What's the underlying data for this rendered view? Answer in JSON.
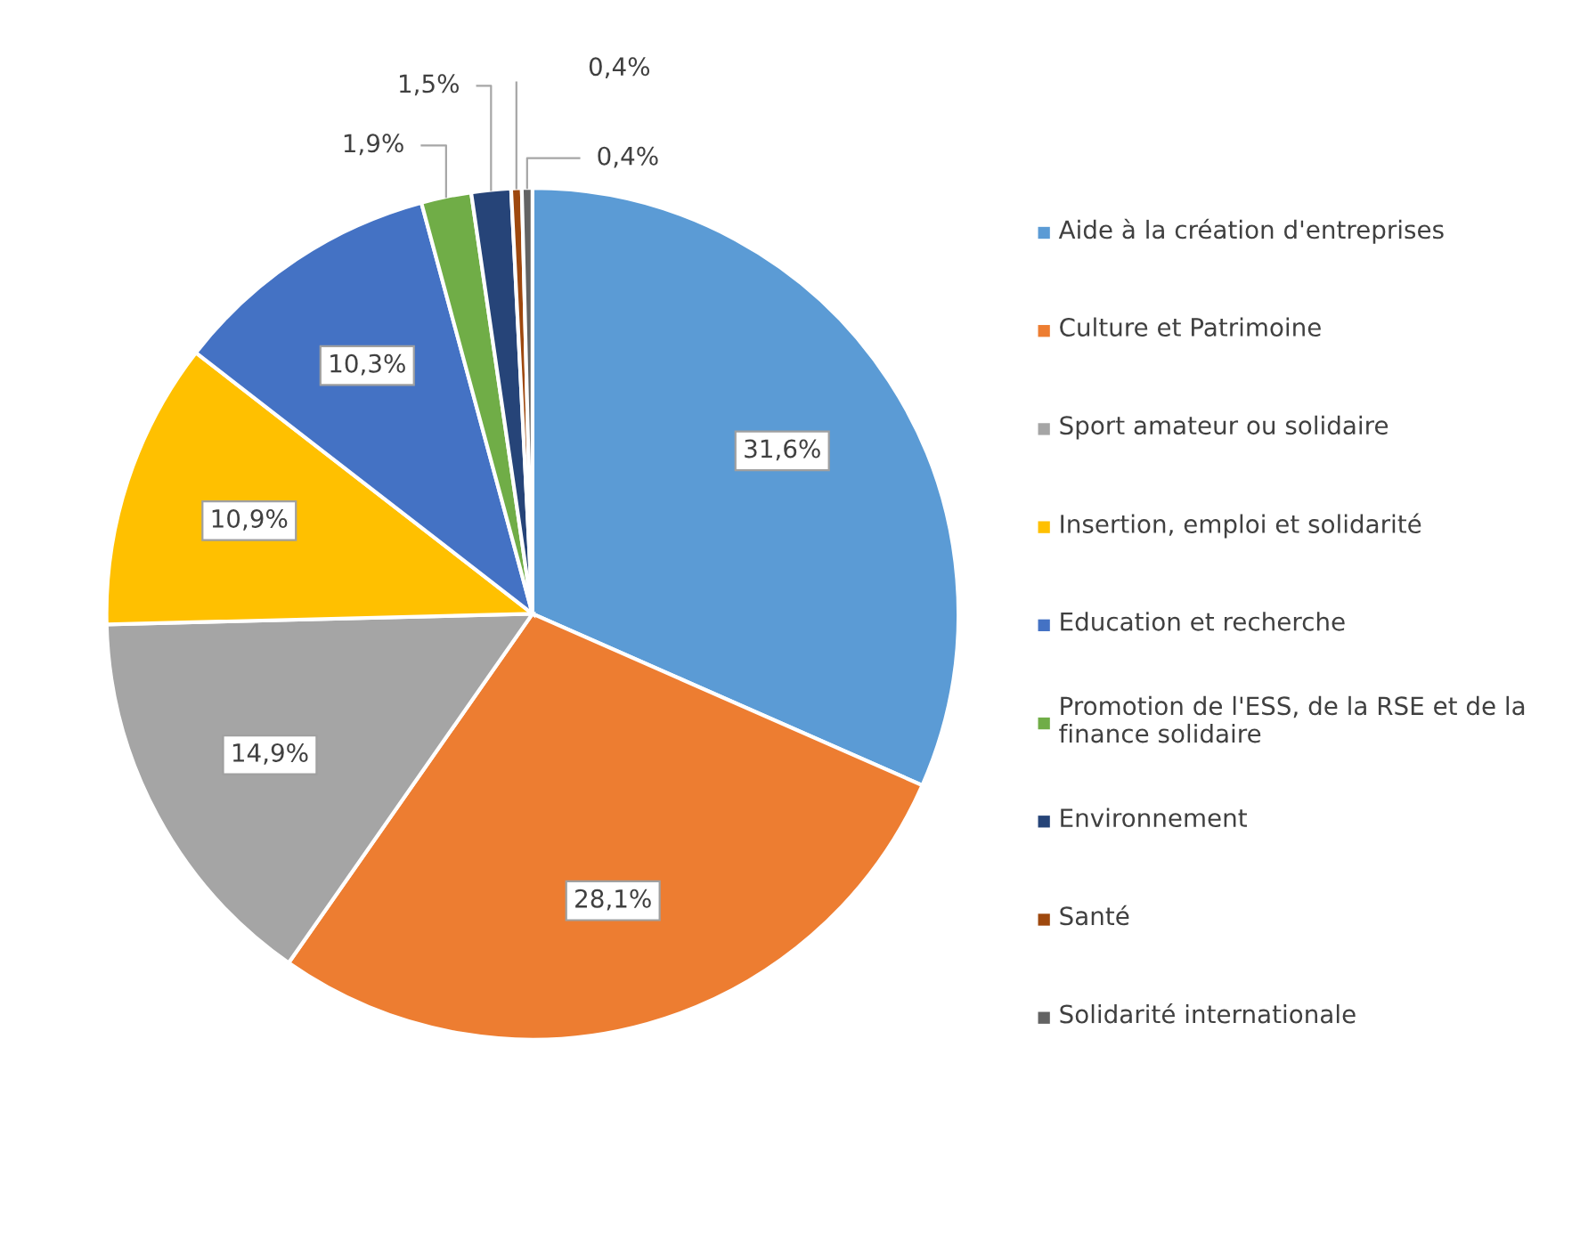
{
  "chart_data": {
    "type": "pie",
    "categories": [
      "Aide à la création d'entreprises",
      "Culture et Patrimoine",
      "Sport amateur ou solidaire",
      "Insertion, emploi et solidarité",
      "Education et recherche",
      "Promotion de l'ESS, de la RSE et de la finance solidaire",
      "Environnement",
      "Santé",
      "Solidarité internationale"
    ],
    "values": [
      31.6,
      28.1,
      14.9,
      10.9,
      10.3,
      1.9,
      1.5,
      0.4,
      0.4
    ],
    "value_labels": [
      "31,6%",
      "28,1%",
      "14,9%",
      "10,9%",
      "10,3%",
      "1,9%",
      "1,5%",
      "0,4%",
      "0,4%"
    ],
    "colors": [
      "#5b9bd5",
      "#ed7d31",
      "#a5a5a5",
      "#ffc000",
      "#4472c4",
      "#70ad47",
      "#264478",
      "#9e480e",
      "#636363"
    ],
    "legend": "right"
  }
}
